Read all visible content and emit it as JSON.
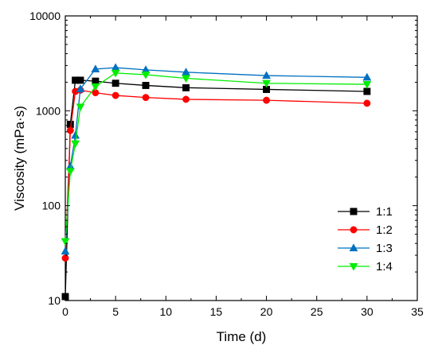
{
  "chart_data": {
    "type": "line",
    "title": "",
    "xlabel": "Time (d)",
    "ylabel": "Viscosity (mPa·s)",
    "x_scale": "linear",
    "y_scale": "log",
    "xlim": [
      0,
      35
    ],
    "ylim": [
      10,
      10000
    ],
    "x_ticks": [
      "0",
      "5",
      "10",
      "15",
      "20",
      "25",
      "30",
      "35"
    ],
    "y_ticks": [
      "10",
      "100",
      "1000",
      "10000"
    ],
    "grid": false,
    "legend_position": "bottom-right",
    "series": [
      {
        "name": "1:1",
        "color": "#000000",
        "marker": "square",
        "x": [
          0,
          0.5,
          1,
          1.5,
          3,
          5,
          8,
          12,
          20,
          30
        ],
        "y": [
          11,
          720,
          2100,
          2100,
          2050,
          1950,
          1850,
          1750,
          1680,
          1600
        ]
      },
      {
        "name": "1:2",
        "color": "#ff0000",
        "marker": "circle",
        "x": [
          0,
          0.5,
          1,
          1.5,
          3,
          5,
          8,
          12,
          20,
          30
        ],
        "y": [
          28,
          620,
          1600,
          1650,
          1550,
          1450,
          1380,
          1320,
          1290,
          1200
        ]
      },
      {
        "name": "1:3",
        "color": "#0070c0",
        "marker": "triangle-up",
        "x": [
          0,
          0.5,
          1,
          1.5,
          3,
          5,
          8,
          12,
          20,
          30
        ],
        "y": [
          33,
          260,
          550,
          1700,
          2750,
          2850,
          2700,
          2550,
          2350,
          2250
        ]
      },
      {
        "name": "1:4",
        "color": "#00ee00",
        "marker": "triangle-down",
        "x": [
          0,
          0.5,
          1,
          1.5,
          3,
          5,
          8,
          12,
          20,
          30
        ],
        "y": [
          42,
          230,
          450,
          1100,
          1800,
          2500,
          2400,
          2200,
          1950,
          1900
        ]
      }
    ]
  }
}
